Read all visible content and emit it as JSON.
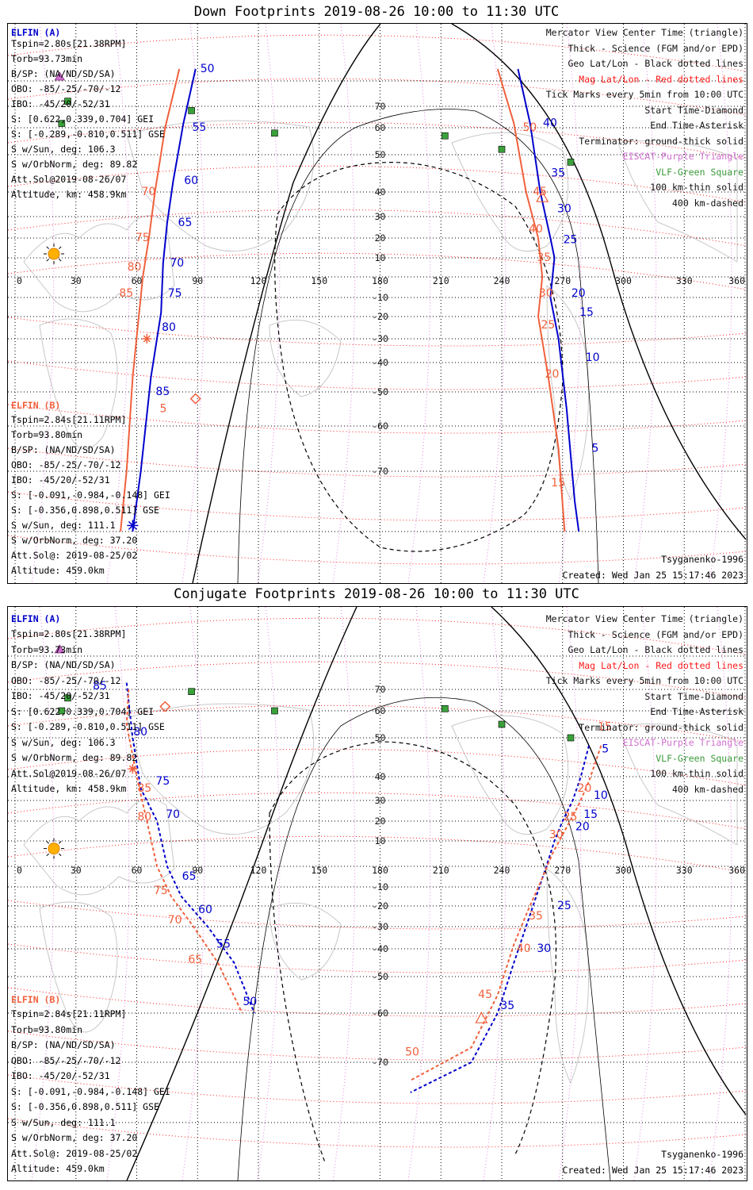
{
  "panels": [
    {
      "title": "Down Footprints 2019-08-26 10:00 to 11:30 UTC",
      "elfin_a": {
        "name": "ELFIN (A)",
        "lines": [
          "Tspin=2.80s[21.38RPM]",
          "Torb=93.73min",
          "B/SP: (NA/ND/SD/SA)",
          "OBO: -85/-25/-70/-12",
          "IBO: -45/20/-52/31",
          "S: [0.622,0.339,0.704] GEI",
          "S: [-0.289,-0.810,0.511] GSE",
          "S w/Sun, deg: 106.3",
          "S w/OrbNorm, deg: 89.82",
          "Att.Sol@2019-08-26/07",
          "Altitude, km: 458.9km"
        ]
      },
      "elfin_b": {
        "name": "ELFIN (B)",
        "lines": [
          "Tspin=2.84s[21.11RPM]",
          "Torb=93.80min",
          "B/SP: (NA/ND/SD/SA)",
          "OBO: -85/-25/-70/-12",
          "IBO: -45/20/-52/31",
          "S: [-0.091,-0.984,-0.148] GEI",
          "S: [-0.356,0.898,0.511] GSE",
          "S w/Sun, deg: 111.1",
          "S w/OrbNorm, deg: 37.20",
          "Att.Sol@: 2019-08-25/02",
          "Altitude: 459.0km"
        ]
      },
      "legend": [
        {
          "text": "Mercator View Center Time (triangle)",
          "color": "#111111"
        },
        {
          "text": "Thick - Science (FGM and/or EPD)",
          "color": "#111111"
        },
        {
          "text": "Geo Lat/Lon - Black dotted lines",
          "color": "#111111"
        },
        {
          "text": "Mag Lat/Lon - Red dotted lines",
          "color": "#ff1a1a"
        },
        {
          "text": "Tick Marks every 5min from 10:00 UTC",
          "color": "#111111"
        },
        {
          "text": "Start Time-Diamond",
          "color": "#111111"
        },
        {
          "text": "End Time-Asterisk",
          "color": "#111111"
        },
        {
          "text": "Terminator: ground-thick solid",
          "color": "#111111"
        },
        {
          "text": "EISCAT-Purple Triangle",
          "color": "#d070d0"
        },
        {
          "text": "VLF-Green Square",
          "color": "#3a9a3a"
        },
        {
          "text": "100 km-thin solid",
          "color": "#111111"
        },
        {
          "text": "400 km-dashed",
          "color": "#111111"
        }
      ],
      "model": "Tsyganenko-1996",
      "created": "Created: Wed Jan 25 15:17:46 2023"
    },
    {
      "title": "Conjugate Footprints 2019-08-26 10:00 to 11:30 UTC",
      "elfin_a": {
        "name": "ELFIN (A)",
        "lines": [
          "Tspin=2.80s[21.38RPM]",
          "Torb=93.73min",
          "B/SP: (NA/ND/SD/SA)",
          "OBO: -85/-25/-70/-12",
          "IBO: -45/20/-52/31",
          "S: [0.622,0.339,0.704] GEI",
          "S: [-0.289,-0.810,0.511] GSE",
          "S w/Sun, deg: 106.3",
          "S w/OrbNorm, deg: 89.82",
          "Att.Sol@2019-08-26/07",
          "Altitude, km: 458.9km"
        ]
      },
      "elfin_b": {
        "name": "ELFIN (B)",
        "lines": [
          "Tspin=2.84s[21.11RPM]",
          "Torb=93.80min",
          "B/SP: (NA/ND/SD/SA)",
          "OBO: -85/-25/-70/-12",
          "IBO: -45/20/-52/31",
          "S: [-0.091,-0.984,-0.148] GEI",
          "S: [-0.356,0.898,0.511] GSE",
          "S w/Sun, deg: 111.1",
          "S w/OrbNorm, deg: 37.20",
          "Att.Sol@: 2019-08-25/02",
          "Altitude: 459.0km"
        ]
      },
      "legend": [
        {
          "text": "Mercator View Center Time (triangle)",
          "color": "#111111"
        },
        {
          "text": "Thick - Science (FGM and/or EPD)",
          "color": "#111111"
        },
        {
          "text": "Geo Lat/Lon - Black dotted lines",
          "color": "#111111"
        },
        {
          "text": "Mag Lat/Lon - Red dotted lines",
          "color": "#ff1a1a"
        },
        {
          "text": "Tick Marks every 5min from 10:00 UTC",
          "color": "#111111"
        },
        {
          "text": "Start Time-Diamond",
          "color": "#111111"
        },
        {
          "text": "End Time-Asterisk",
          "color": "#111111"
        },
        {
          "text": "Terminator: ground-thick solid",
          "color": "#111111"
        },
        {
          "text": "EISCAT-Purple Triangle",
          "color": "#d070d0"
        },
        {
          "text": "VLF-Green Square",
          "color": "#3a9a3a"
        },
        {
          "text": "100 km-thin solid",
          "color": "#111111"
        },
        {
          "text": "400 km-dashed",
          "color": "#111111"
        }
      ],
      "model": "Tsyganenko-1996",
      "created": "Created: Wed Jan 25 15:17:46 2023"
    }
  ],
  "chart_data": [
    {
      "type": "line",
      "title": "Down Footprints 2019-08-26 10:00 to 11:30 UTC",
      "x_ticks": [
        0,
        30,
        60,
        90,
        120,
        150,
        180,
        210,
        240,
        270,
        300,
        330,
        360
      ],
      "y_ticks": [
        70,
        60,
        50,
        40,
        30,
        20,
        10,
        -10,
        -20,
        -30,
        -40,
        -50,
        -60,
        -70
      ],
      "xlim": [
        0,
        360
      ],
      "ylim": [
        -80,
        80
      ],
      "grid": true,
      "series": [
        {
          "name": "ELFIN (A)",
          "color": "#0000cc",
          "line": "solid",
          "points": [
            [
              89,
              85
            ],
            [
              83,
              62
            ],
            [
              78,
              43
            ],
            [
              75,
              27
            ],
            [
              73,
              7
            ],
            [
              72,
              -18
            ],
            [
              67,
              -45
            ],
            [
              62,
              -70
            ],
            [
              58,
              -80
            ]
          ],
          "ticks": [
            {
              "label": "50",
              "lon": 89,
              "lat": 85
            },
            {
              "label": "55",
              "lon": 85,
              "lat": 60
            },
            {
              "label": "60",
              "lon": 81,
              "lat": 43
            },
            {
              "label": "65",
              "lon": 78,
              "lat": 27
            },
            {
              "label": "70",
              "lon": 74,
              "lat": 7
            },
            {
              "label": "75",
              "lon": 73,
              "lat": -8
            },
            {
              "label": "80",
              "lon": 70,
              "lat": -25
            },
            {
              "label": "85",
              "lon": 67,
              "lat": -50
            }
          ],
          "ticks2": [
            {
              "label": "40",
              "lon": 258,
              "lat": 62
            },
            {
              "label": "35",
              "lon": 262,
              "lat": 45
            },
            {
              "label": "30",
              "lon": 265,
              "lat": 33
            },
            {
              "label": "25",
              "lon": 268,
              "lat": 19
            },
            {
              "label": "20",
              "lon": 272,
              "lat": -8
            },
            {
              "label": "15",
              "lon": 276,
              "lat": -18
            },
            {
              "label": "10",
              "lon": 279,
              "lat": -38
            },
            {
              "label": "5",
              "lon": 282,
              "lat": -65
            },
            {
              "label": "",
              "lon": 285,
              "lat": -80
            }
          ],
          "seg2": [
            [
              248,
              85
            ],
            [
              254,
              62
            ],
            [
              259,
              40
            ],
            [
              264,
              20
            ],
            [
              266,
              10
            ],
            [
              264,
              -10
            ],
            [
              268,
              -30
            ],
            [
              272,
              -55
            ],
            [
              276,
              -75
            ],
            [
              278,
              -80
            ]
          ]
        },
        {
          "name": "ELFIN (B)",
          "color": "#f0603c",
          "line": "solid",
          "points": [
            [
              81,
              85
            ],
            [
              74,
              60
            ],
            [
              69,
              40
            ],
            [
              66,
              20
            ],
            [
              63,
              0
            ],
            [
              61,
              -20
            ],
            [
              58,
              -45
            ],
            [
              55,
              -70
            ],
            [
              52,
              -80
            ]
          ],
          "ticks": [
            {
              "label": "70",
              "lon": 60,
              "lat": 40
            },
            {
              "label": "75",
              "lon": 57,
              "lat": 20
            },
            {
              "label": "80",
              "lon": 53,
              "lat": 5
            },
            {
              "label": "85",
              "lon": 49,
              "lat": -8
            }
          ],
          "seg2": [
            [
              238,
              85
            ],
            [
              246,
              62
            ],
            [
              252,
              40
            ],
            [
              258,
              20
            ],
            [
              260,
              0
            ],
            [
              258,
              -20
            ],
            [
              263,
              -45
            ],
            [
              268,
              -65
            ],
            [
              271,
              -80
            ]
          ],
          "ticks2": [
            {
              "label": "50",
              "lon": 248,
              "lat": 60
            },
            {
              "label": "45",
              "lon": 253,
              "lat": 40
            },
            {
              "label": "40",
              "lon": 251,
              "lat": 24
            },
            {
              "label": "35",
              "lon": 255,
              "lat": 10
            },
            {
              "label": "30",
              "lon": 256,
              "lat": -8
            },
            {
              "label": "25",
              "lon": 257,
              "lat": -24
            },
            {
              "label": "20",
              "lon": 259,
              "lat": -44
            },
            {
              "label": "15",
              "lon": 262,
              "lat": -72
            },
            {
              "label": "5",
              "lon": 69,
              "lat": -55
            }
          ]
        },
        {
          "name": "",
          "color": "#000000",
          "line": "solid",
          "note": "terminator"
        }
      ]
    },
    {
      "type": "line",
      "title": "Conjugate Footprints 2019-08-26 10:00 to 11:30 UTC",
      "x_ticks": [
        0,
        30,
        60,
        90,
        120,
        150,
        180,
        210,
        240,
        270,
        300,
        330,
        360
      ],
      "y_ticks": [
        70,
        60,
        50,
        40,
        30,
        20,
        10,
        -10,
        -20,
        -30,
        -40,
        -50,
        -60,
        -70
      ],
      "xlim": [
        0,
        360
      ],
      "ylim": [
        -80,
        80
      ],
      "grid": true,
      "series": [
        {
          "name": "ELFIN (A)",
          "color": "#0000cc",
          "line": "dashed",
          "points": [
            [
              55,
              72
            ],
            [
              58,
              50
            ],
            [
              62,
              35
            ],
            [
              70,
              20
            ],
            [
              75,
              0
            ],
            [
              82,
              -15
            ],
            [
              95,
              -30
            ],
            [
              108,
              -45
            ],
            [
              118,
              -60
            ]
          ],
          "ticks": [
            {
              "label": "85",
              "lon": 36,
              "lat": 71
            },
            {
              "label": "80",
              "lon": 56,
              "lat": 52
            },
            {
              "label": "75",
              "lon": 67,
              "lat": 38
            },
            {
              "label": "70",
              "lon": 72,
              "lat": 23
            },
            {
              "label": "65",
              "lon": 80,
              "lat": -5
            },
            {
              "label": "60",
              "lon": 88,
              "lat": -22
            },
            {
              "label": "55",
              "lon": 97,
              "lat": -38
            },
            {
              "label": "50",
              "lon": 110,
              "lat": -57
            }
          ],
          "seg2": [
            [
              283,
              48
            ],
            [
              279,
              40
            ],
            [
              275,
              30
            ],
            [
              270,
              20
            ],
            [
              266,
              10
            ],
            [
              262,
              0
            ],
            [
              257,
              -15
            ],
            [
              252,
              -30
            ],
            [
              246,
              -45
            ],
            [
              238,
              -60
            ],
            [
              225,
              -70
            ],
            [
              195,
              -75
            ]
          ],
          "ticks2": [
            {
              "label": "5",
              "lon": 287,
              "lat": 47
            },
            {
              "label": "10",
              "lon": 283,
              "lat": 32
            },
            {
              "label": "15",
              "lon": 278,
              "lat": 23
            },
            {
              "label": "20",
              "lon": 274,
              "lat": 17
            },
            {
              "label": "25",
              "lon": 265,
              "lat": -20
            },
            {
              "label": "30",
              "lon": 255,
              "lat": -40
            },
            {
              "label": "35",
              "lon": 237,
              "lat": -58
            }
          ]
        },
        {
          "name": "ELFIN (B)",
          "color": "#f0603c",
          "line": "dashed",
          "points": [
            [
              56,
              70
            ],
            [
              55,
              55
            ],
            [
              60,
              40
            ],
            [
              65,
              20
            ],
            [
              70,
              0
            ],
            [
              77,
              -15
            ],
            [
              88,
              -30
            ],
            [
              100,
              -45
            ],
            [
              112,
              -60
            ]
          ],
          "ticks": [
            {
              "label": "85",
              "lon": 58,
              "lat": 35
            },
            {
              "label": "80",
              "lon": 58,
              "lat": 22
            },
            {
              "label": "75",
              "lon": 66,
              "lat": -12
            },
            {
              "label": "70",
              "lon": 73,
              "lat": -27
            },
            {
              "label": "65",
              "lon": 83,
              "lat": -44
            }
          ],
          "seg2": [
            [
              289,
              48
            ],
            [
              283,
              38
            ],
            [
              278,
              28
            ],
            [
              271,
              15
            ],
            [
              265,
              5
            ],
            [
              259,
              -8
            ],
            [
              253,
              -22
            ],
            [
              246,
              -38
            ],
            [
              238,
              -55
            ],
            [
              225,
              -67
            ],
            [
              195,
              -73
            ]
          ],
          "ticks2": [
            {
              "label": "15",
              "lon": 285,
              "lat": 54
            },
            {
              "label": "20",
              "lon": 275,
              "lat": 35
            },
            {
              "label": "25",
              "lon": 268,
              "lat": 22
            },
            {
              "label": "30",
              "lon": 261,
              "lat": 13
            },
            {
              "label": "35",
              "lon": 251,
              "lat": -25
            },
            {
              "label": "40",
              "lon": 245,
              "lat": -40
            },
            {
              "label": "45",
              "lon": 226,
              "lat": -55
            },
            {
              "label": "50",
              "lon": 190,
              "lat": -68
            }
          ]
        },
        {
          "name": "",
          "color": "#000000",
          "line": "solid",
          "note": "terminator"
        }
      ]
    }
  ]
}
